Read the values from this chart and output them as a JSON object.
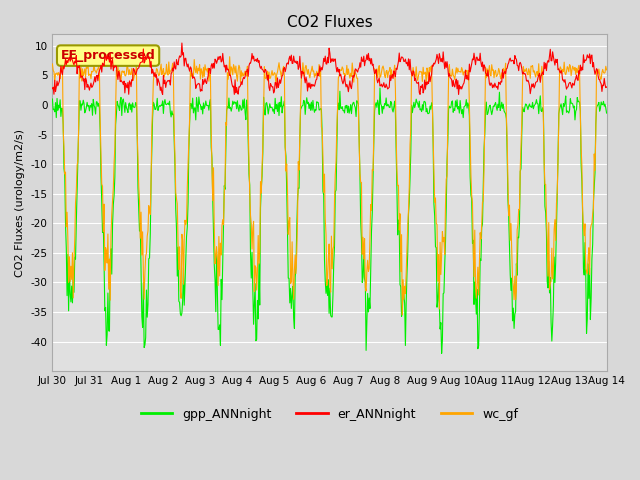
{
  "title": "CO2 Fluxes",
  "ylabel": "CO2 Fluxes (urology/m2/s)",
  "ylim": [
    -45,
    12
  ],
  "yticks": [
    -40,
    -35,
    -30,
    -25,
    -20,
    -15,
    -10,
    -5,
    0,
    5,
    10
  ],
  "background_color": "#d8d8d8",
  "plot_bg_color": "#e0e0e0",
  "legend_items": [
    "gpp_ANNnight",
    "er_ANNnight",
    "wc_gf"
  ],
  "legend_colors": [
    "#00ee00",
    "#ff0000",
    "#ffa500"
  ],
  "annotation_text": "EE_processed",
  "annotation_color": "#ffff88",
  "n_days": 15,
  "samples_per_day": 48,
  "gpp_color": "#00ee00",
  "er_color": "#ff0000",
  "wc_color": "#ffa500",
  "grid_color": "#ffffff",
  "title_fontsize": 11,
  "ylabel_fontsize": 8,
  "tick_fontsize": 7.5,
  "legend_fontsize": 9,
  "linewidth": 0.8
}
